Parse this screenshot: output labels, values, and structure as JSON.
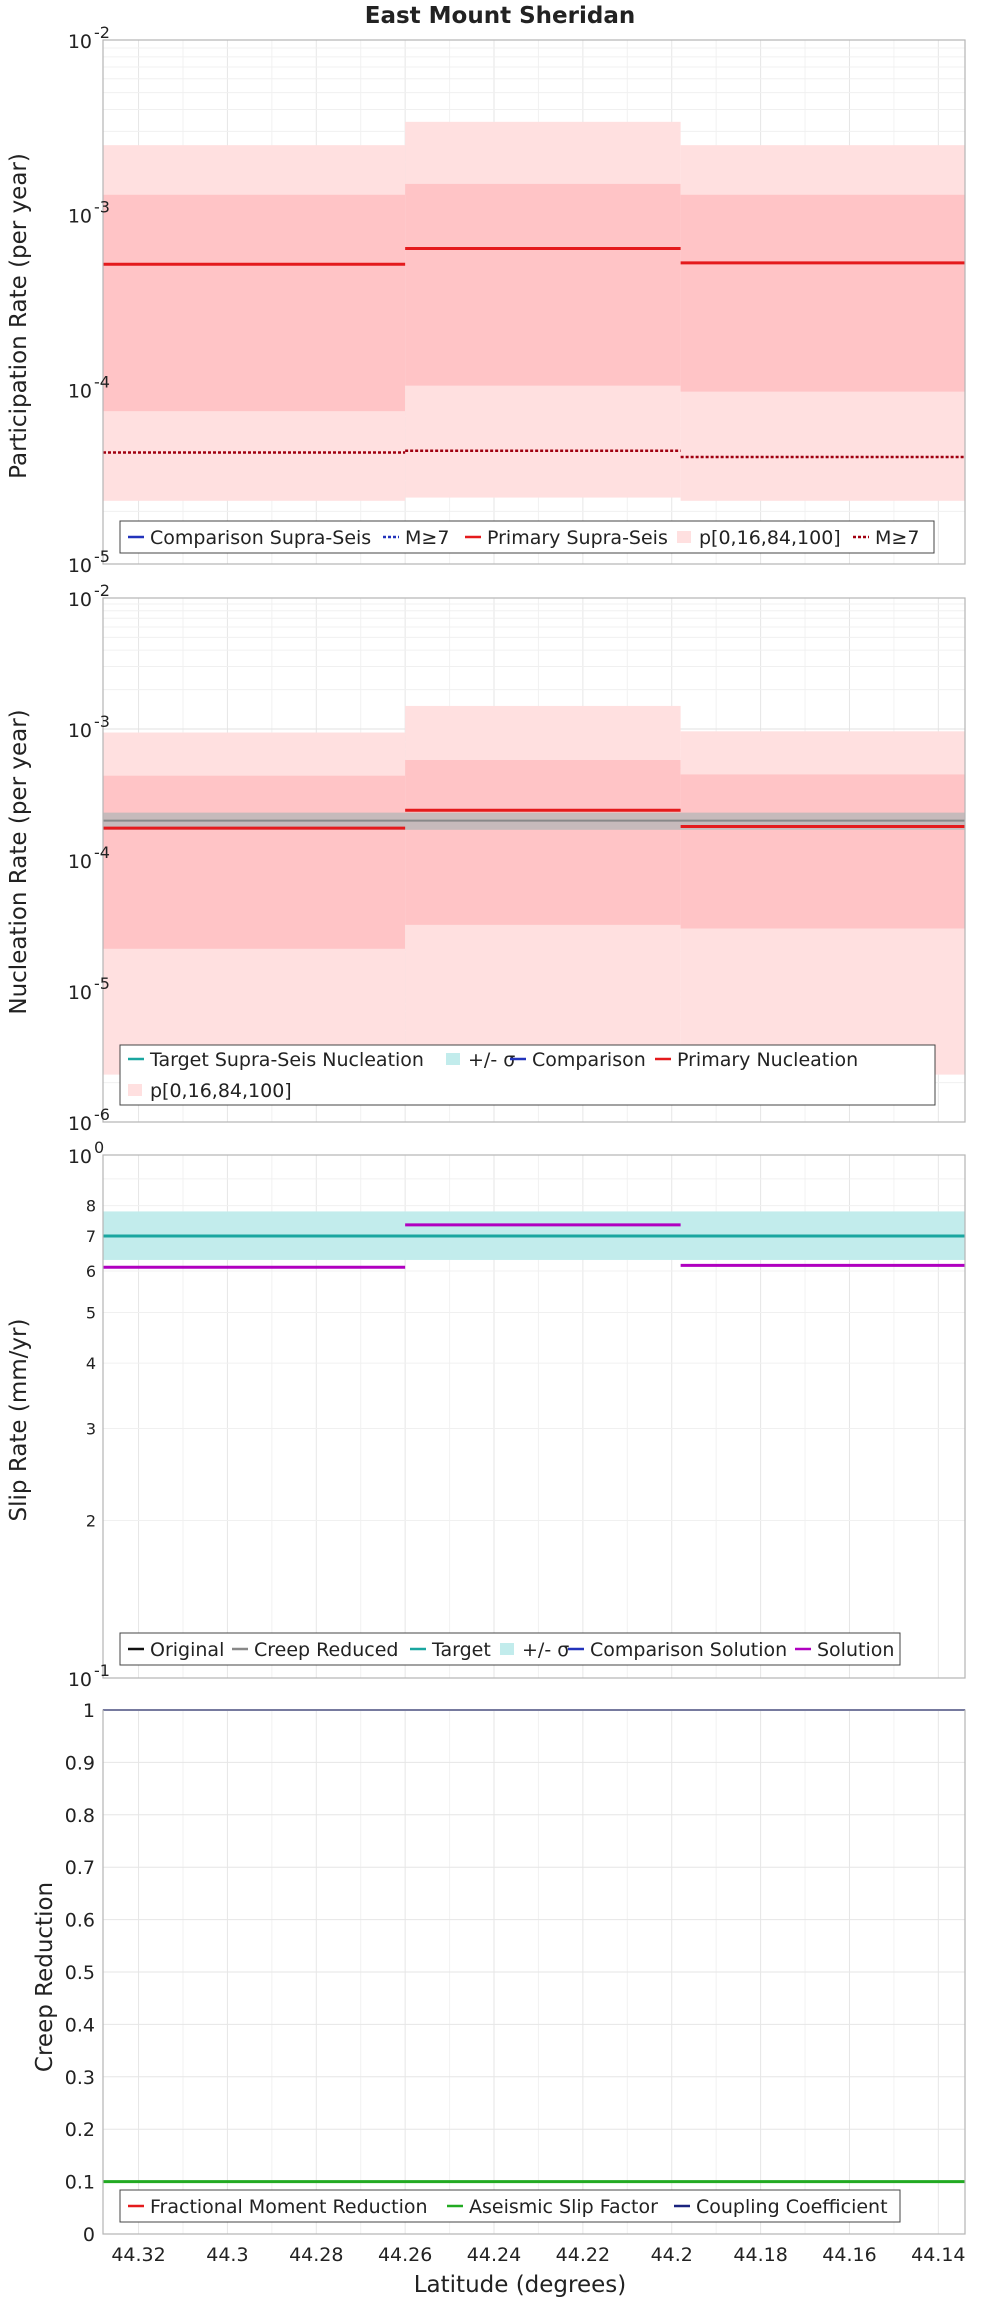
{
  "title": "East Mount Sheridan",
  "xlabel": "Latitude (degrees)",
  "x_ticks": [
    "44.32",
    "44.3",
    "44.28",
    "44.26",
    "44.24",
    "44.22",
    "44.2",
    "44.18",
    "44.16",
    "44.14"
  ],
  "chart_data": [
    {
      "type": "line",
      "ylabel": "Participation Rate (per year)",
      "yscale": "log",
      "ylim": [
        1e-05,
        0.01
      ],
      "xlim": [
        44.328,
        44.134
      ],
      "grid": true,
      "legend_position": "bottom",
      "legend": [
        "Comparison Supra-Seis",
        "M≥7",
        "Primary Supra-Seis",
        "p[0,16,84,100]",
        "M≥7"
      ],
      "segments": [
        {
          "x_start": 44.328,
          "x_end": 44.26,
          "p0": 2.3e-05,
          "p16": 7.5e-05,
          "p84": 0.0013,
          "p100": 0.0025,
          "primary": 0.00052,
          "m7": 4.35e-05
        },
        {
          "x_start": 44.26,
          "x_end": 44.198,
          "p0": 2.4e-05,
          "p16": 0.000105,
          "p84": 0.0015,
          "p100": 0.0034,
          "primary": 0.00064,
          "m7": 4.45e-05
        },
        {
          "x_start": 44.198,
          "x_end": 44.134,
          "p0": 2.3e-05,
          "p16": 9.7e-05,
          "p84": 0.0013,
          "p100": 0.0025,
          "primary": 0.00053,
          "m7": 4.1e-05
        }
      ]
    },
    {
      "type": "line",
      "ylabel": "Nucleation Rate (per year)",
      "yscale": "log",
      "ylim": [
        1e-06,
        0.01
      ],
      "xlim": [
        44.328,
        44.134
      ],
      "grid": true,
      "legend_position": "bottom",
      "legend": [
        "Target Supra-Seis Nucleation",
        "+/- σ",
        "Comparison",
        "Primary Nucleation",
        "p[0,16,84,100]"
      ],
      "target": 0.0002,
      "target_sigma": [
        0.00017,
        0.00023
      ],
      "segments": [
        {
          "x_start": 44.328,
          "x_end": 44.26,
          "p0": 2.3e-06,
          "p16": 2.1e-05,
          "p84": 0.00044,
          "p100": 0.00094,
          "primary": 0.000175
        },
        {
          "x_start": 44.26,
          "x_end": 44.198,
          "p0": 2.3e-06,
          "p16": 3.2e-05,
          "p84": 0.00058,
          "p100": 0.0015,
          "primary": 0.00024
        },
        {
          "x_start": 44.198,
          "x_end": 44.134,
          "p0": 2.3e-06,
          "p16": 3e-05,
          "p84": 0.00045,
          "p100": 0.00096,
          "primary": 0.00018
        }
      ]
    },
    {
      "type": "line",
      "ylabel": "Slip Rate (mm/yr)",
      "yscale": "log",
      "ylim": [
        1,
        10
      ],
      "xlim": [
        44.328,
        44.134
      ],
      "grid": true,
      "legend_position": "bottom",
      "legend": [
        "Original",
        "Creep Reduced",
        "Target",
        "+/- σ",
        "Comparison Solution",
        "Solution"
      ],
      "target": 7.0,
      "target_sigma": [
        6.3,
        7.8
      ],
      "segments": [
        {
          "x_start": 44.328,
          "x_end": 44.26,
          "solution": 6.1
        },
        {
          "x_start": 44.26,
          "x_end": 44.198,
          "solution": 7.35
        },
        {
          "x_start": 44.198,
          "x_end": 44.134,
          "solution": 6.15
        }
      ]
    },
    {
      "type": "line",
      "ylabel": "Creep Reduction",
      "yscale": "linear",
      "ylim": [
        0,
        1
      ],
      "xlim": [
        44.328,
        44.134
      ],
      "grid": true,
      "legend_position": "bottom",
      "legend": [
        "Fractional Moment Reduction",
        "Aseismic Slip Factor",
        "Coupling Coefficient"
      ],
      "aseismic_slip_factor": 0.1,
      "coupling_coefficient": 1.0
    }
  ],
  "y_tick_labels": {
    "p1": [
      "10",
      "10",
      "10",
      "10"
    ],
    "p1_exp": [
      "-5",
      "-4",
      "-3",
      "-2"
    ],
    "p2": [
      "10",
      "10",
      "10",
      "10",
      "10"
    ],
    "p2_exp": [
      "-6",
      "-5",
      "-4",
      "-3",
      "-2"
    ],
    "p3_major": [
      "10",
      "10"
    ],
    "p3_major_exp": [
      "-1",
      "0"
    ],
    "p3_minor": [
      "2",
      "3",
      "4",
      "5",
      "6",
      "7",
      "8"
    ],
    "p4": [
      "0",
      "0.1",
      "0.2",
      "0.3",
      "0.4",
      "0.5",
      "0.6",
      "0.7",
      "0.8",
      "0.9",
      "1"
    ]
  },
  "colors": {
    "primary": "#e41a1c",
    "p_outer": "#ffe0e0",
    "p_inner": "#ffc4c6",
    "comparison": "#2233bb",
    "target": "#1aa6a0",
    "sigma": "#c2ecec",
    "solution": "#b000c0",
    "grey": "#888888",
    "aseismic": "#22aa22",
    "coupling": "#1a237e"
  }
}
